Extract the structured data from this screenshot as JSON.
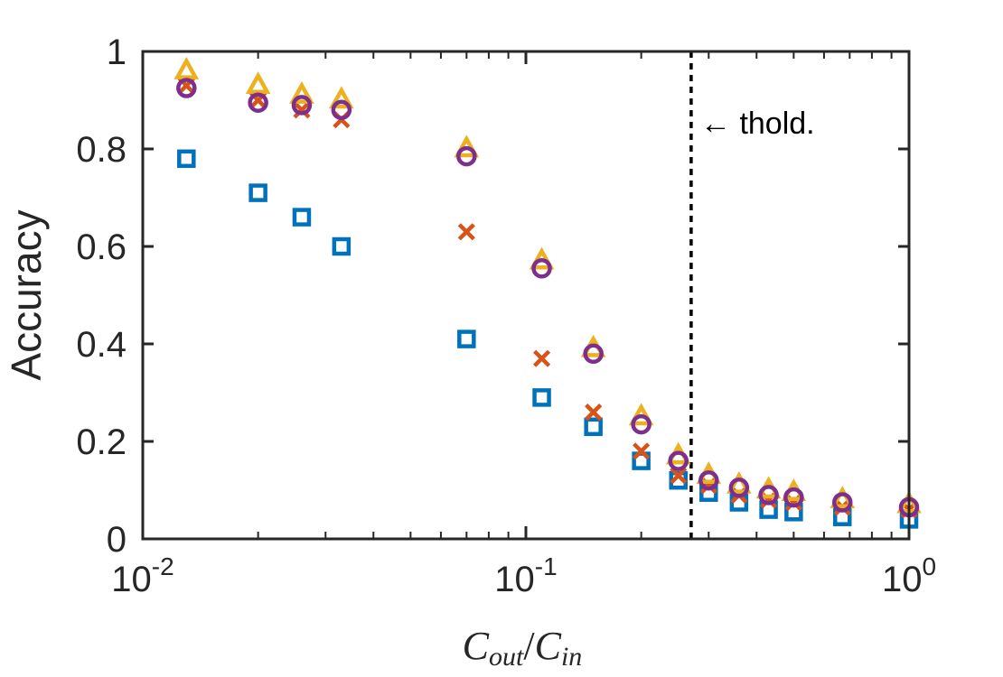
{
  "chart_data": {
    "type": "scatter",
    "xscale": "log",
    "xlim": [
      0.01,
      1
    ],
    "ylim": [
      0,
      1
    ],
    "grid": false,
    "legend": "none",
    "ylabel": "Accuracy",
    "xlabel": {
      "base": "C",
      "num_sub": "out",
      "den_sub": "in"
    },
    "xticks": [
      {
        "value": 0.01,
        "base": "10",
        "exp": "-2"
      },
      {
        "value": 0.1,
        "base": "10",
        "exp": "-1"
      },
      {
        "value": 1,
        "base": "10",
        "exp": "0"
      }
    ],
    "yticks": [
      {
        "value": 0,
        "label": "0"
      },
      {
        "value": 0.2,
        "label": "0.2"
      },
      {
        "value": 0.4,
        "label": "0.4"
      },
      {
        "value": 0.6,
        "label": "0.6"
      },
      {
        "value": 0.8,
        "label": "0.8"
      },
      {
        "value": 1,
        "label": "1"
      }
    ],
    "threshold": {
      "x": 0.27,
      "label": "← thold."
    },
    "series": [
      {
        "marker": "square",
        "color": "#0072BD",
        "x": [
          0.013,
          0.02,
          0.026,
          0.033,
          0.07,
          0.11,
          0.15,
          0.2,
          0.25,
          0.3,
          0.36,
          0.43,
          0.5,
          0.67,
          1.0
        ],
        "y": [
          0.78,
          0.71,
          0.66,
          0.6,
          0.41,
          0.29,
          0.23,
          0.16,
          0.12,
          0.095,
          0.075,
          0.06,
          0.055,
          0.045,
          0.04
        ]
      },
      {
        "marker": "x",
        "color": "#D95319",
        "x": [
          0.013,
          0.02,
          0.026,
          0.033,
          0.07,
          0.11,
          0.15,
          0.2,
          0.25,
          0.3,
          0.36,
          0.43,
          0.5,
          0.67,
          1.0
        ],
        "y": [
          0.93,
          0.9,
          0.88,
          0.86,
          0.63,
          0.37,
          0.26,
          0.18,
          0.13,
          0.11,
          0.09,
          0.08,
          0.075,
          0.065,
          0.06
        ]
      },
      {
        "marker": "triangle",
        "color": "#EDB120",
        "x": [
          0.013,
          0.02,
          0.026,
          0.033,
          0.07,
          0.11,
          0.15,
          0.2,
          0.25,
          0.3,
          0.36,
          0.43,
          0.5,
          0.67,
          1.0
        ],
        "y": [
          0.96,
          0.93,
          0.91,
          0.9,
          0.8,
          0.57,
          0.39,
          0.25,
          0.17,
          0.13,
          0.11,
          0.1,
          0.095,
          0.08,
          0.07
        ]
      },
      {
        "marker": "circle",
        "color": "#7E2F8E",
        "x": [
          0.013,
          0.02,
          0.026,
          0.033,
          0.07,
          0.11,
          0.15,
          0.2,
          0.25,
          0.3,
          0.36,
          0.43,
          0.5,
          0.67,
          1.0
        ],
        "y": [
          0.925,
          0.895,
          0.89,
          0.88,
          0.785,
          0.555,
          0.38,
          0.235,
          0.16,
          0.12,
          0.105,
          0.09,
          0.085,
          0.075,
          0.065
        ]
      }
    ]
  }
}
